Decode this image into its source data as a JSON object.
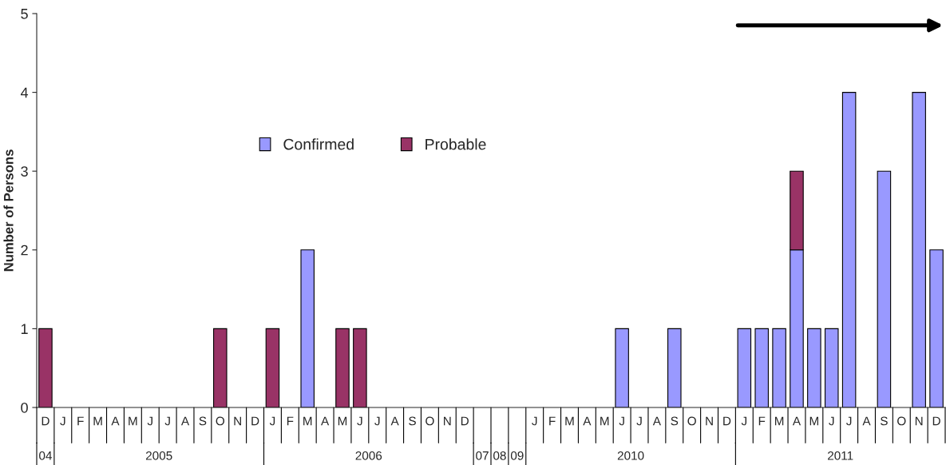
{
  "chart_data": {
    "type": "bar",
    "stacked": true,
    "ylabel": "Number of Persons",
    "categories": [
      "D",
      "J",
      "F",
      "M",
      "A",
      "M",
      "J",
      "J",
      "A",
      "S",
      "O",
      "N",
      "D",
      "J",
      "F",
      "M",
      "A",
      "M",
      "J",
      "J",
      "A",
      "S",
      "O",
      "N",
      "D",
      null,
      null,
      null,
      "J",
      "F",
      "M",
      "A",
      "M",
      "J",
      "J",
      "A",
      "S",
      "O",
      "N",
      "D",
      "J",
      "F",
      "M",
      "A",
      "M",
      "J",
      "J",
      "A",
      "S",
      "O",
      "N",
      "D"
    ],
    "series": [
      {
        "name": "Confirmed",
        "color": "#9999ff",
        "values": [
          0,
          0,
          0,
          0,
          0,
          0,
          0,
          0,
          0,
          0,
          0,
          0,
          0,
          0,
          0,
          2,
          0,
          0,
          0,
          0,
          0,
          0,
          0,
          0,
          0,
          0,
          0,
          0,
          0,
          0,
          0,
          0,
          0,
          1,
          0,
          0,
          1,
          0,
          0,
          0,
          1,
          1,
          1,
          2,
          1,
          1,
          4,
          0,
          3,
          0,
          4,
          2
        ]
      },
      {
        "name": "Probable",
        "color": "#993366",
        "values": [
          1,
          0,
          0,
          0,
          0,
          0,
          0,
          0,
          0,
          0,
          1,
          0,
          0,
          1,
          0,
          0,
          0,
          1,
          1,
          0,
          0,
          0,
          0,
          0,
          0,
          0,
          0,
          0,
          0,
          0,
          0,
          0,
          0,
          0,
          0,
          0,
          0,
          0,
          0,
          0,
          0,
          0,
          0,
          1,
          0,
          0,
          0,
          0,
          0,
          0,
          0,
          0
        ]
      }
    ],
    "annotations": [
      "04",
      "2005",
      "2006",
      "07",
      "08",
      "09",
      "2010",
      "2011"
    ],
    "ylim": [
      0,
      5
    ],
    "yticks": [
      0,
      1,
      2,
      3,
      4,
      5
    ],
    "grid": false,
    "legend": "top left"
  }
}
